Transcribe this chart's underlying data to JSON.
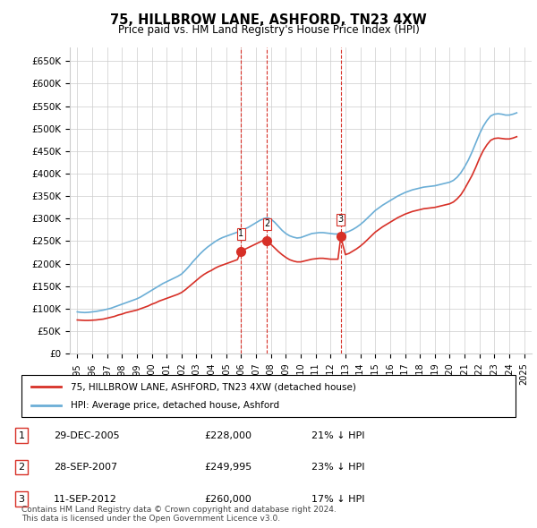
{
  "title": "75, HILLBROW LANE, ASHFORD, TN23 4XW",
  "subtitle": "Price paid vs. HM Land Registry's House Price Index (HPI)",
  "ylabel_ticks": [
    "£0",
    "£50K",
    "£100K",
    "£150K",
    "£200K",
    "£250K",
    "£300K",
    "£350K",
    "£400K",
    "£450K",
    "£500K",
    "£550K",
    "£600K",
    "£650K"
  ],
  "ytick_values": [
    0,
    50000,
    100000,
    150000,
    200000,
    250000,
    300000,
    350000,
    400000,
    450000,
    500000,
    550000,
    600000,
    650000
  ],
  "ylim": [
    0,
    680000
  ],
  "xlim_start": 1994.5,
  "xlim_end": 2025.5,
  "x_ticks": [
    1995,
    1996,
    1997,
    1998,
    1999,
    2000,
    2001,
    2002,
    2003,
    2004,
    2005,
    2006,
    2007,
    2008,
    2009,
    2010,
    2011,
    2012,
    2013,
    2014,
    2015,
    2016,
    2017,
    2018,
    2019,
    2020,
    2021,
    2022,
    2023,
    2024,
    2025
  ],
  "hpi_color": "#6baed6",
  "price_color": "#d73027",
  "marker_color": "#d73027",
  "vline_color": "#d73027",
  "grid_color": "#cccccc",
  "background_color": "#ffffff",
  "sale_dates_year": [
    2005.99,
    2007.74,
    2012.69
  ],
  "sale_prices": [
    228000,
    249995,
    260000
  ],
  "sale_labels": [
    "1",
    "2",
    "3"
  ],
  "legend_line1": "75, HILLBROW LANE, ASHFORD, TN23 4XW (detached house)",
  "legend_line2": "HPI: Average price, detached house, Ashford",
  "table_entries": [
    {
      "num": "1",
      "date": "29-DEC-2005",
      "price": "£228,000",
      "pct": "21% ↓ HPI"
    },
    {
      "num": "2",
      "date": "28-SEP-2007",
      "price": "£249,995",
      "pct": "23% ↓ HPI"
    },
    {
      "num": "3",
      "date": "11-SEP-2012",
      "price": "£260,000",
      "pct": "17% ↓ HPI"
    }
  ],
  "footer": "Contains HM Land Registry data © Crown copyright and database right 2024.\nThis data is licensed under the Open Government Licence v3.0.",
  "hpi_data_x": [
    1995.0,
    1995.25,
    1995.5,
    1995.75,
    1996.0,
    1996.25,
    1996.5,
    1996.75,
    1997.0,
    1997.25,
    1997.5,
    1997.75,
    1998.0,
    1998.25,
    1998.5,
    1998.75,
    1999.0,
    1999.25,
    1999.5,
    1999.75,
    2000.0,
    2000.25,
    2000.5,
    2000.75,
    2001.0,
    2001.25,
    2001.5,
    2001.75,
    2002.0,
    2002.25,
    2002.5,
    2002.75,
    2003.0,
    2003.25,
    2003.5,
    2003.75,
    2004.0,
    2004.25,
    2004.5,
    2004.75,
    2005.0,
    2005.25,
    2005.5,
    2005.75,
    2006.0,
    2006.25,
    2006.5,
    2006.75,
    2007.0,
    2007.25,
    2007.5,
    2007.75,
    2008.0,
    2008.25,
    2008.5,
    2008.75,
    2009.0,
    2009.25,
    2009.5,
    2009.75,
    2010.0,
    2010.25,
    2010.5,
    2010.75,
    2011.0,
    2011.25,
    2011.5,
    2011.75,
    2012.0,
    2012.25,
    2012.5,
    2012.75,
    2013.0,
    2013.25,
    2013.5,
    2013.75,
    2014.0,
    2014.25,
    2014.5,
    2014.75,
    2015.0,
    2015.25,
    2015.5,
    2015.75,
    2016.0,
    2016.25,
    2016.5,
    2016.75,
    2017.0,
    2017.25,
    2017.5,
    2017.75,
    2018.0,
    2018.25,
    2018.5,
    2018.75,
    2019.0,
    2019.25,
    2019.5,
    2019.75,
    2020.0,
    2020.25,
    2020.5,
    2020.75,
    2021.0,
    2021.25,
    2021.5,
    2021.75,
    2022.0,
    2022.25,
    2022.5,
    2022.75,
    2023.0,
    2023.25,
    2023.5,
    2023.75,
    2024.0,
    2024.25,
    2024.5
  ],
  "hpi_data_y": [
    93000,
    92000,
    91500,
    92000,
    93000,
    94000,
    95500,
    97000,
    99000,
    101000,
    104000,
    107000,
    110000,
    113000,
    116000,
    119000,
    122000,
    126000,
    131000,
    136000,
    141000,
    146000,
    151000,
    156000,
    160000,
    164000,
    168000,
    172000,
    177000,
    185000,
    194000,
    204000,
    213000,
    222000,
    230000,
    237000,
    243000,
    249000,
    254000,
    258000,
    261000,
    264000,
    267000,
    270000,
    273000,
    277000,
    281000,
    286000,
    291000,
    296000,
    300000,
    302000,
    299000,
    292000,
    283000,
    274000,
    267000,
    262000,
    259000,
    257000,
    258000,
    261000,
    264000,
    267000,
    268000,
    269000,
    269000,
    268000,
    267000,
    266000,
    266000,
    267000,
    269000,
    272000,
    276000,
    281000,
    287000,
    294000,
    302000,
    310000,
    318000,
    324000,
    330000,
    335000,
    340000,
    345000,
    350000,
    354000,
    358000,
    361000,
    364000,
    366000,
    368000,
    370000,
    371000,
    372000,
    373000,
    375000,
    377000,
    379000,
    381000,
    385000,
    392000,
    402000,
    415000,
    430000,
    448000,
    468000,
    488000,
    505000,
    518000,
    528000,
    532000,
    533000,
    532000,
    530000,
    530000,
    532000,
    535000
  ],
  "price_line_x": [
    1995.0,
    1995.25,
    1995.5,
    1995.75,
    1996.0,
    1996.25,
    1996.5,
    1996.75,
    1997.0,
    1997.25,
    1997.5,
    1997.75,
    1998.0,
    1998.25,
    1998.5,
    1998.75,
    1999.0,
    1999.25,
    1999.5,
    1999.75,
    2000.0,
    2000.25,
    2000.5,
    2000.75,
    2001.0,
    2001.25,
    2001.5,
    2001.75,
    2002.0,
    2002.25,
    2002.5,
    2002.75,
    2003.0,
    2003.25,
    2003.5,
    2003.75,
    2004.0,
    2004.25,
    2004.5,
    2004.75,
    2005.0,
    2005.25,
    2005.5,
    2005.75,
    2005.99,
    2006.25,
    2006.5,
    2006.75,
    2007.0,
    2007.25,
    2007.5,
    2007.74,
    2008.0,
    2008.25,
    2008.5,
    2008.75,
    2009.0,
    2009.25,
    2009.5,
    2009.75,
    2010.0,
    2010.25,
    2010.5,
    2010.75,
    2011.0,
    2011.25,
    2011.5,
    2011.75,
    2012.0,
    2012.25,
    2012.5,
    2012.69,
    2013.0,
    2013.25,
    2013.5,
    2013.75,
    2014.0,
    2014.25,
    2014.5,
    2014.75,
    2015.0,
    2015.25,
    2015.5,
    2015.75,
    2016.0,
    2016.25,
    2016.5,
    2016.75,
    2017.0,
    2017.25,
    2017.5,
    2017.75,
    2018.0,
    2018.25,
    2018.5,
    2018.75,
    2019.0,
    2019.25,
    2019.5,
    2019.75,
    2020.0,
    2020.25,
    2020.5,
    2020.75,
    2021.0,
    2021.25,
    2021.5,
    2021.75,
    2022.0,
    2022.25,
    2022.5,
    2022.75,
    2023.0,
    2023.25,
    2023.5,
    2023.75,
    2024.0,
    2024.25,
    2024.5
  ],
  "price_line_y": [
    75000,
    74500,
    74000,
    74000,
    74500,
    75000,
    76000,
    77000,
    79000,
    81000,
    83000,
    86000,
    88000,
    91000,
    93000,
    95000,
    97000,
    100000,
    103000,
    106000,
    110000,
    113000,
    117000,
    120000,
    123000,
    126000,
    129000,
    132000,
    136000,
    142000,
    149000,
    156000,
    163000,
    170000,
    176000,
    181000,
    185000,
    190000,
    194000,
    197000,
    200000,
    203000,
    206000,
    209000,
    228000,
    232000,
    236000,
    240000,
    244000,
    248000,
    252000,
    249995,
    243000,
    235000,
    227000,
    220000,
    214000,
    209000,
    206000,
    204000,
    204000,
    206000,
    208000,
    210000,
    211000,
    212000,
    212000,
    211000,
    210000,
    210000,
    210000,
    260000,
    220000,
    223000,
    228000,
    233000,
    239000,
    246000,
    254000,
    262000,
    270000,
    276000,
    282000,
    287000,
    292000,
    297000,
    302000,
    306000,
    310000,
    313000,
    316000,
    318000,
    320000,
    322000,
    323000,
    324000,
    325000,
    327000,
    329000,
    331000,
    333000,
    337000,
    344000,
    353000,
    366000,
    381000,
    396000,
    414000,
    434000,
    451000,
    464000,
    474000,
    478000,
    479000,
    478000,
    477000,
    477000,
    479000,
    482000
  ]
}
